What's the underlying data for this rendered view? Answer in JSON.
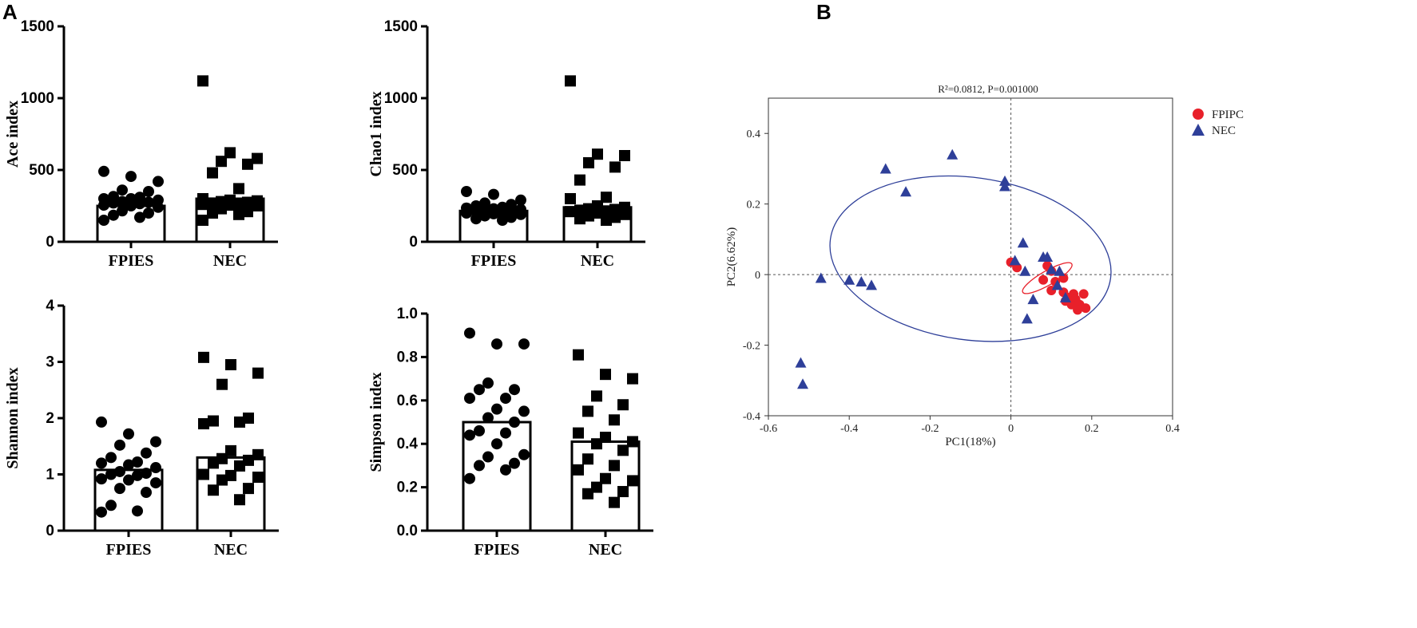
{
  "panels": {
    "a": "A",
    "b": "B"
  },
  "colors": {
    "ink": "#000000",
    "fpipc": "#e8202a",
    "nec": "#2e3f99",
    "axis": "#333333"
  },
  "chart_data": [
    {
      "type": "bar",
      "title": "",
      "ylabel": "Ace index",
      "categories": [
        "FPIES",
        "NEC"
      ],
      "values": [
        250,
        300
      ],
      "ylim": [
        0,
        1500
      ],
      "yticks": [
        0,
        500,
        1000,
        1500
      ],
      "tick_labels": [
        "0",
        "500",
        "1000",
        "1500"
      ],
      "points": [
        [
          490,
          455,
          420,
          360,
          350,
          315,
          310,
          300,
          300,
          290,
          280,
          275,
          270,
          265,
          255,
          250,
          240,
          215,
          200,
          185,
          170,
          150
        ],
        [
          1120,
          620,
          580,
          560,
          540,
          480,
          370,
          300,
          290,
          285,
          280,
          275,
          270,
          265,
          260,
          255,
          250,
          230,
          210,
          200,
          190,
          150
        ]
      ],
      "markers": [
        "circle",
        "square"
      ]
    },
    {
      "type": "bar",
      "title": "",
      "ylabel": "Chao1 index",
      "categories": [
        "FPIES",
        "NEC"
      ],
      "values": [
        215,
        240
      ],
      "ylim": [
        0,
        1500
      ],
      "yticks": [
        0,
        500,
        1000,
        1500
      ],
      "tick_labels": [
        "0",
        "500",
        "1000",
        "1500"
      ],
      "points": [
        [
          350,
          330,
          290,
          270,
          260,
          250,
          240,
          235,
          230,
          225,
          220,
          215,
          210,
          205,
          200,
          195,
          190,
          180,
          170,
          160,
          150
        ],
        [
          1120,
          610,
          600,
          550,
          520,
          430,
          310,
          300,
          250,
          240,
          230,
          225,
          220,
          215,
          210,
          200,
          190,
          180,
          170,
          160,
          150
        ]
      ],
      "markers": [
        "circle",
        "square"
      ]
    },
    {
      "type": "bar",
      "title": "",
      "ylabel": "Shannon index",
      "categories": [
        "FPIES",
        "NEC"
      ],
      "values": [
        1.08,
        1.3
      ],
      "ylim": [
        0,
        4
      ],
      "yticks": [
        0,
        1,
        2,
        3,
        4
      ],
      "tick_labels": [
        "0",
        "1",
        "2",
        "3",
        "4"
      ],
      "points": [
        [
          1.93,
          1.72,
          1.58,
          1.52,
          1.38,
          1.3,
          1.22,
          1.2,
          1.17,
          1.12,
          1.05,
          1.02,
          1.0,
          0.98,
          0.92,
          0.9,
          0.85,
          0.75,
          0.68,
          0.45,
          0.35,
          0.33
        ],
        [
          3.08,
          2.95,
          2.8,
          2.6,
          2.0,
          1.95,
          1.93,
          1.9,
          1.42,
          1.35,
          1.28,
          1.25,
          1.2,
          1.15,
          1.0,
          0.98,
          0.95,
          0.9,
          0.75,
          0.72,
          0.55
        ]
      ],
      "markers": [
        "circle",
        "square"
      ]
    },
    {
      "type": "bar",
      "title": "",
      "ylabel": "Simpson index",
      "categories": [
        "FPIES",
        "NEC"
      ],
      "values": [
        0.5,
        0.41
      ],
      "ylim": [
        0,
        1.0
      ],
      "yticks": [
        0,
        0.2,
        0.4,
        0.6,
        0.8,
        1.0
      ],
      "tick_labels": [
        "0.0",
        "0.2",
        "0.4",
        "0.6",
        "0.8",
        "1.0"
      ],
      "points": [
        [
          0.91,
          0.86,
          0.86,
          0.68,
          0.65,
          0.65,
          0.61,
          0.61,
          0.56,
          0.55,
          0.52,
          0.5,
          0.46,
          0.45,
          0.44,
          0.4,
          0.35,
          0.34,
          0.31,
          0.3,
          0.28,
          0.24
        ],
        [
          0.81,
          0.72,
          0.7,
          0.62,
          0.58,
          0.55,
          0.51,
          0.45,
          0.43,
          0.41,
          0.4,
          0.37,
          0.33,
          0.3,
          0.28,
          0.24,
          0.23,
          0.2,
          0.18,
          0.17,
          0.13
        ]
      ],
      "markers": [
        "circle",
        "square"
      ]
    },
    {
      "type": "scatter",
      "title": "R²=0.0812, P=0.001000",
      "xlabel": "PC1(18%)",
      "ylabel": "PC2(6.62%)",
      "xlim": [
        -0.6,
        0.4
      ],
      "ylim": [
        -0.4,
        0.5
      ],
      "xticks": [
        -0.6,
        -0.4,
        -0.2,
        0,
        0.2,
        0.4
      ],
      "xtick_labels": [
        "-0.6",
        "-0.4",
        "-0.2",
        "0",
        "0.2",
        "0.4"
      ],
      "yticks": [
        -0.4,
        -0.2,
        0,
        0.2,
        0.4
      ],
      "ytick_labels": [
        "-0.4",
        "-0.2",
        "0",
        "0.2",
        "0.4"
      ],
      "legend": [
        "FPIPC",
        "NEC"
      ],
      "legend_position": "top-right",
      "series": [
        {
          "name": "FPIPC",
          "marker": "circle",
          "color": "#e8202a",
          "points": [
            [
              0.0,
              0.035
            ],
            [
              0.015,
              0.02
            ],
            [
              0.09,
              0.025
            ],
            [
              0.1,
              0.01
            ],
            [
              0.13,
              -0.01
            ],
            [
              0.08,
              -0.015
            ],
            [
              0.11,
              -0.02
            ],
            [
              0.1,
              -0.045
            ],
            [
              0.13,
              -0.05
            ],
            [
              0.155,
              -0.055
            ],
            [
              0.18,
              -0.055
            ],
            [
              0.14,
              -0.065
            ],
            [
              0.16,
              -0.07
            ],
            [
              0.135,
              -0.075
            ],
            [
              0.17,
              -0.085
            ],
            [
              0.15,
              -0.085
            ],
            [
              0.185,
              -0.095
            ],
            [
              0.165,
              -0.1
            ]
          ]
        },
        {
          "name": "NEC",
          "marker": "triangle",
          "color": "#2e3f99",
          "points": [
            [
              -0.145,
              0.34
            ],
            [
              -0.31,
              0.3
            ],
            [
              -0.015,
              0.265
            ],
            [
              -0.015,
              0.25
            ],
            [
              -0.26,
              0.235
            ],
            [
              0.03,
              0.09
            ],
            [
              0.08,
              0.05
            ],
            [
              0.09,
              0.05
            ],
            [
              0.01,
              0.04
            ],
            [
              0.1,
              0.015
            ],
            [
              0.035,
              0.01
            ],
            [
              0.12,
              0.01
            ],
            [
              -0.47,
              -0.01
            ],
            [
              -0.4,
              -0.015
            ],
            [
              -0.37,
              -0.02
            ],
            [
              -0.345,
              -0.03
            ],
            [
              0.115,
              -0.03
            ],
            [
              0.135,
              -0.065
            ],
            [
              0.055,
              -0.07
            ],
            [
              0.04,
              -0.125
            ],
            [
              -0.52,
              -0.25
            ],
            [
              -0.515,
              -0.31
            ]
          ]
        }
      ],
      "ellipses": [
        {
          "group": "NEC",
          "center": [
            -0.1,
            0.045
          ],
          "radii": [
            0.35,
            0.23
          ],
          "angle_deg": 8
        },
        {
          "group": "FPIPC",
          "center": [
            0.09,
            -0.01
          ],
          "radii": [
            0.07,
            0.02
          ],
          "angle_deg": -30
        }
      ]
    }
  ]
}
